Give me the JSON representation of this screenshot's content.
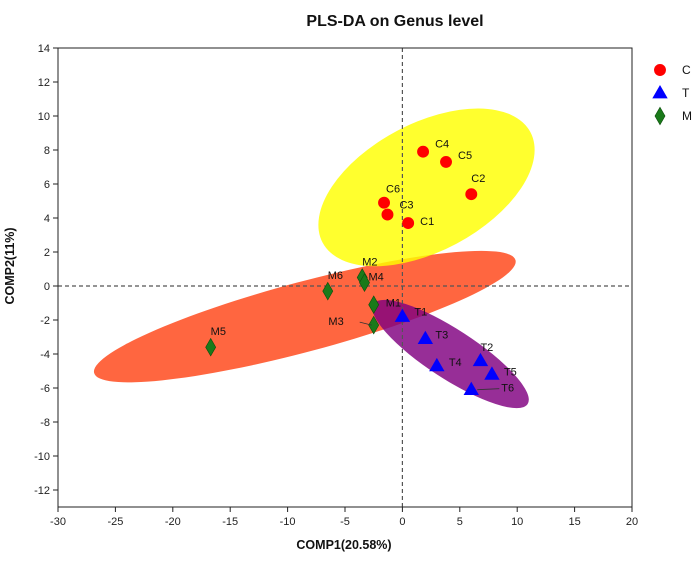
{
  "chart_data": {
    "type": "scatter",
    "title": "PLS-DA on Genus level",
    "xlabel": "COMP1(20.58%)",
    "ylabel": "COMP2(11%)",
    "xlim": [
      -30,
      20
    ],
    "ylim": [
      -13,
      14
    ],
    "xticks": [
      -30,
      -25,
      -20,
      -15,
      -10,
      -5,
      0,
      5,
      10,
      15,
      20
    ],
    "yticks": [
      -12,
      -10,
      -8,
      -6,
      -4,
      -2,
      0,
      2,
      4,
      6,
      8,
      10,
      12,
      14
    ],
    "grid": false,
    "reference_lines": {
      "x": 0,
      "y": 0,
      "style": "dashed"
    },
    "legend_position": "top-right",
    "series": [
      {
        "name": "C",
        "marker": "circle",
        "color": "#ff0000",
        "points": [
          {
            "label": "C1",
            "x": 0.5,
            "y": 3.7
          },
          {
            "label": "C2",
            "x": 6.0,
            "y": 5.4
          },
          {
            "label": "C3",
            "x": -1.3,
            "y": 4.2
          },
          {
            "label": "C4",
            "x": 1.8,
            "y": 7.9
          },
          {
            "label": "C5",
            "x": 3.8,
            "y": 7.3
          },
          {
            "label": "C6",
            "x": -1.6,
            "y": 4.9
          }
        ],
        "ellipse": {
          "cx": 2.1,
          "cy": 5.8,
          "rx": 20.5,
          "ry": 7.5,
          "angle_deg": 28,
          "color": "#ffff00",
          "opacity": 0.82
        }
      },
      {
        "name": "T",
        "marker": "triangle",
        "color": "#0000ff",
        "points": [
          {
            "label": "T1",
            "x": 0.0,
            "y": -1.8
          },
          {
            "label": "T2",
            "x": 6.8,
            "y": -4.4
          },
          {
            "label": "T3",
            "x": 2.0,
            "y": -3.1
          },
          {
            "label": "T4",
            "x": 3.0,
            "y": -4.7
          },
          {
            "label": "T5",
            "x": 7.8,
            "y": -5.2
          },
          {
            "label": "T6",
            "x": 6.0,
            "y": -6.1
          }
        ],
        "ellipse": {
          "cx": 4.2,
          "cy": -4.0,
          "rx": 16.0,
          "ry": 2.9,
          "angle_deg": -33,
          "color": "#800080",
          "opacity": 0.82
        }
      },
      {
        "name": "M",
        "marker": "diamond",
        "color": "#1a7a1a",
        "points": [
          {
            "label": "M1",
            "x": -2.5,
            "y": -1.1
          },
          {
            "label": "M2",
            "x": -3.5,
            "y": 0.5
          },
          {
            "label": "M3",
            "x": -2.5,
            "y": -2.3
          },
          {
            "label": "M4",
            "x": -3.3,
            "y": 0.2
          },
          {
            "label": "M5",
            "x": -16.7,
            "y": -3.6
          },
          {
            "label": "M6",
            "x": -6.5,
            "y": -0.3
          }
        ],
        "ellipse": {
          "cx": -8.5,
          "cy": -1.8,
          "rx": 38.0,
          "ry": 4.1,
          "angle_deg": 15,
          "color": "#ff3300",
          "opacity": 0.75
        }
      }
    ]
  }
}
